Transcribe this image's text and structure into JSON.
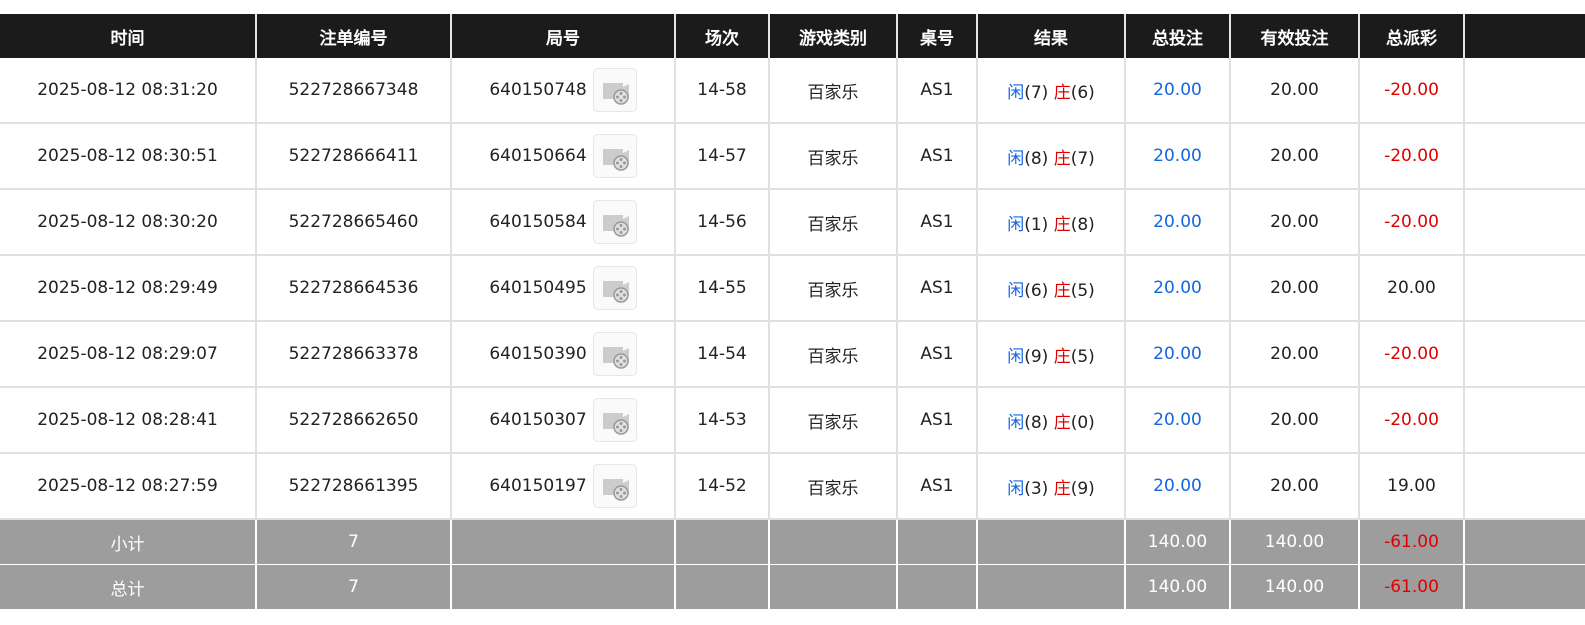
{
  "table": {
    "headers": [
      "时间",
      "注单编号",
      "局号",
      "场次",
      "游戏类别",
      "桌号",
      "结果",
      "总投注",
      "有效投注",
      "总派彩"
    ],
    "rows": [
      [
        "2025-08-12 08:31:20",
        "522728667348",
        "640150748",
        "14-58",
        "百家乐",
        "AS1",
        [
          "闲",
          "(7)",
          "庄",
          "(6)"
        ],
        "20.00",
        "20.00",
        "-20.00"
      ],
      [
        "2025-08-12 08:30:51",
        "522728666411",
        "640150664",
        "14-57",
        "百家乐",
        "AS1",
        [
          "闲",
          "(8)",
          "庄",
          "(7)"
        ],
        "20.00",
        "20.00",
        "-20.00"
      ],
      [
        "2025-08-12 08:30:20",
        "522728665460",
        "640150584",
        "14-56",
        "百家乐",
        "AS1",
        [
          "闲",
          "(1)",
          "庄",
          "(8)"
        ],
        "20.00",
        "20.00",
        "-20.00"
      ],
      [
        "2025-08-12 08:29:49",
        "522728664536",
        "640150495",
        "14-55",
        "百家乐",
        "AS1",
        [
          "闲",
          "(6)",
          "庄",
          "(5)"
        ],
        "20.00",
        "20.00",
        "20.00"
      ],
      [
        "2025-08-12 08:29:07",
        "522728663378",
        "640150390",
        "14-54",
        "百家乐",
        "AS1",
        [
          "闲",
          "(9)",
          "庄",
          "(5)"
        ],
        "20.00",
        "20.00",
        "-20.00"
      ],
      [
        "2025-08-12 08:28:41",
        "522728662650",
        "640150307",
        "14-53",
        "百家乐",
        "AS1",
        [
          "闲",
          "(8)",
          "庄",
          "(0)"
        ],
        "20.00",
        "20.00",
        "-20.00"
      ],
      [
        "2025-08-12 08:27:59",
        "522728661395",
        "640150197",
        "14-52",
        "百家乐",
        "AS1",
        [
          "闲",
          "(3)",
          "庄",
          "(9)"
        ],
        "20.00",
        "20.00",
        "19.00"
      ]
    ],
    "summary": [
      {
        "label": "小计",
        "count": "7",
        "bet": "140.00",
        "valid": "140.00",
        "payout": "-61.00"
      },
      {
        "label": "总计",
        "count": "7",
        "bet": "140.00",
        "valid": "140.00",
        "payout": "-61.00"
      }
    ]
  }
}
